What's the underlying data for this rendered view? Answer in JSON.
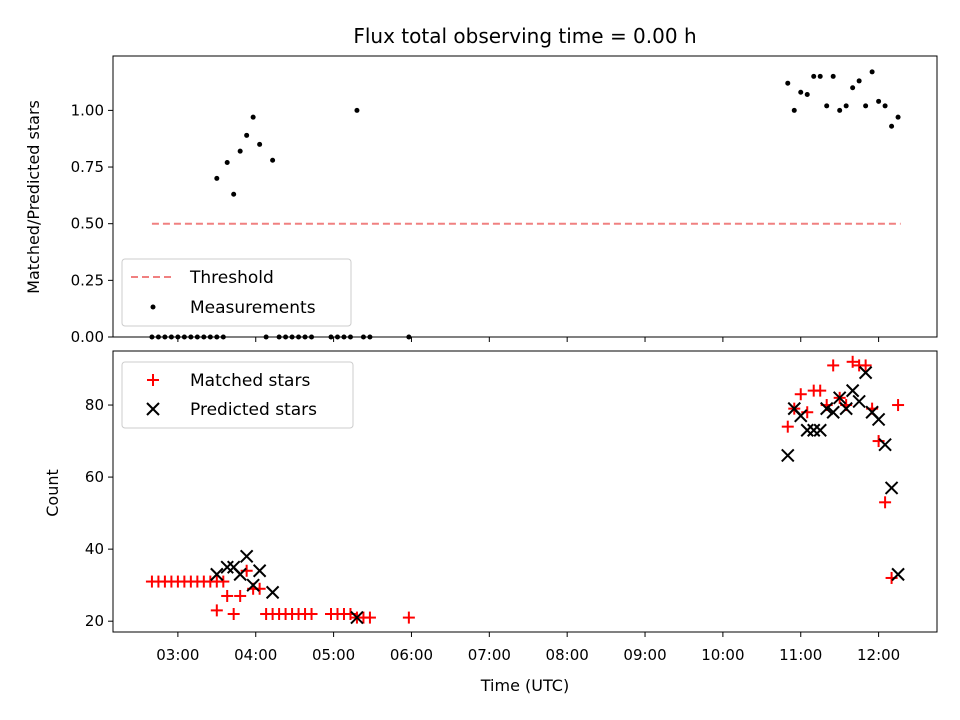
{
  "chart_data": [
    {
      "type": "scatter",
      "title": "Flux total observing time = 0.00 h",
      "xlabel": "",
      "ylabel": "Matched/Predicted stars",
      "ylim": [
        0,
        1.24
      ],
      "yticks": [
        "0.00",
        "0.25",
        "0.50",
        "0.75",
        "1.00"
      ],
      "ytick_values": [
        0,
        0.25,
        0.5,
        0.75,
        1.0
      ],
      "legend": "bottom-left",
      "grid": false,
      "threshold": {
        "name": "Threshold",
        "value": 0.5,
        "x_start": "02:40",
        "x_end": "12:17",
        "color": "#f08080"
      },
      "series": [
        {
          "name": "Measurements",
          "color": "#000000",
          "x": [
            "02:40",
            "02:45",
            "02:50",
            "02:55",
            "03:00",
            "03:05",
            "03:10",
            "03:15",
            "03:20",
            "03:25",
            "03:30",
            "03:35",
            "03:30",
            "03:38",
            "03:43",
            "03:48",
            "03:53",
            "03:58",
            "04:03",
            "04:13",
            "04:08",
            "04:18",
            "04:23",
            "04:28",
            "04:33",
            "04:38",
            "04:43",
            "04:58",
            "05:03",
            "05:08",
            "05:13",
            "05:18",
            "05:23",
            "05:28",
            "05:58",
            "10:50",
            "10:55",
            "11:00",
            "11:05",
            "11:10",
            "11:15",
            "11:20",
            "11:25",
            "11:30",
            "11:35",
            "11:40",
            "11:45",
            "11:50",
            "11:55",
            "12:00",
            "12:05",
            "12:10",
            "12:15"
          ],
          "y": [
            0,
            0,
            0,
            0,
            0,
            0,
            0,
            0,
            0,
            0,
            0,
            0,
            0.7,
            0.77,
            0.63,
            0.82,
            0.89,
            0.97,
            0.85,
            0.78,
            0,
            0,
            0,
            0,
            0,
            0,
            0,
            0,
            0,
            0,
            0,
            1.0,
            0,
            0,
            0,
            1.12,
            1.0,
            1.08,
            1.07,
            1.15,
            1.15,
            1.02,
            1.15,
            1.0,
            1.02,
            1.1,
            1.13,
            1.02,
            1.17,
            1.04,
            1.02,
            0.93,
            0.97
          ]
        }
      ]
    },
    {
      "type": "scatter",
      "xlabel": "Time (UTC)",
      "ylabel": "Count",
      "ylim": [
        17,
        95
      ],
      "yticks": [
        "20",
        "40",
        "60",
        "80"
      ],
      "ytick_values": [
        20,
        40,
        60,
        80
      ],
      "xticks": [
        "03:00",
        "04:00",
        "05:00",
        "06:00",
        "07:00",
        "08:00",
        "09:00",
        "10:00",
        "11:00",
        "12:00"
      ],
      "xlim": [
        "02:10",
        "12:45"
      ],
      "legend": "top-left",
      "grid": false,
      "series": [
        {
          "name": "Matched stars",
          "marker": "plus",
          "color": "#ff0000",
          "x": [
            "02:40",
            "02:45",
            "02:50",
            "02:55",
            "03:00",
            "03:05",
            "03:10",
            "03:15",
            "03:20",
            "03:25",
            "03:30",
            "03:35",
            "03:30",
            "03:38",
            "03:43",
            "03:48",
            "03:53",
            "03:58",
            "04:03",
            "04:08",
            "04:13",
            "04:18",
            "04:23",
            "04:28",
            "04:33",
            "04:38",
            "04:43",
            "04:58",
            "05:03",
            "05:08",
            "05:13",
            "05:18",
            "05:23",
            "05:28",
            "05:58",
            "10:50",
            "10:55",
            "11:00",
            "11:05",
            "11:10",
            "11:15",
            "11:20",
            "11:25",
            "11:30",
            "11:35",
            "11:40",
            "11:45",
            "11:50",
            "11:55",
            "12:00",
            "12:05",
            "12:10",
            "12:15"
          ],
          "y": [
            31,
            31,
            31,
            31,
            31,
            31,
            31,
            31,
            31,
            31,
            31,
            31,
            23,
            27,
            22,
            27,
            34,
            29,
            29,
            22,
            22,
            22,
            22,
            22,
            22,
            22,
            22,
            22,
            22,
            22,
            22,
            21,
            21,
            21,
            21,
            74,
            79,
            83,
            78,
            84,
            84,
            80,
            91,
            82,
            80,
            92,
            91,
            91,
            79,
            70,
            53,
            32,
            80
          ]
        },
        {
          "name": "Predicted stars",
          "marker": "x",
          "color": "#000000",
          "x": [
            "03:30",
            "03:38",
            "03:43",
            "03:48",
            "03:53",
            "03:58",
            "04:03",
            "04:13",
            "05:18",
            "10:50",
            "10:55",
            "11:00",
            "11:05",
            "11:10",
            "11:15",
            "11:20",
            "11:25",
            "11:30",
            "11:35",
            "11:40",
            "11:45",
            "11:50",
            "11:55",
            "12:00",
            "12:05",
            "12:10",
            "12:15"
          ],
          "y": [
            33,
            35,
            35,
            33,
            38,
            30,
            34,
            28,
            21,
            66,
            79,
            77,
            73,
            73,
            73,
            79,
            78,
            82,
            79,
            84,
            81,
            89,
            78,
            76,
            69,
            57,
            33
          ]
        }
      ]
    }
  ]
}
